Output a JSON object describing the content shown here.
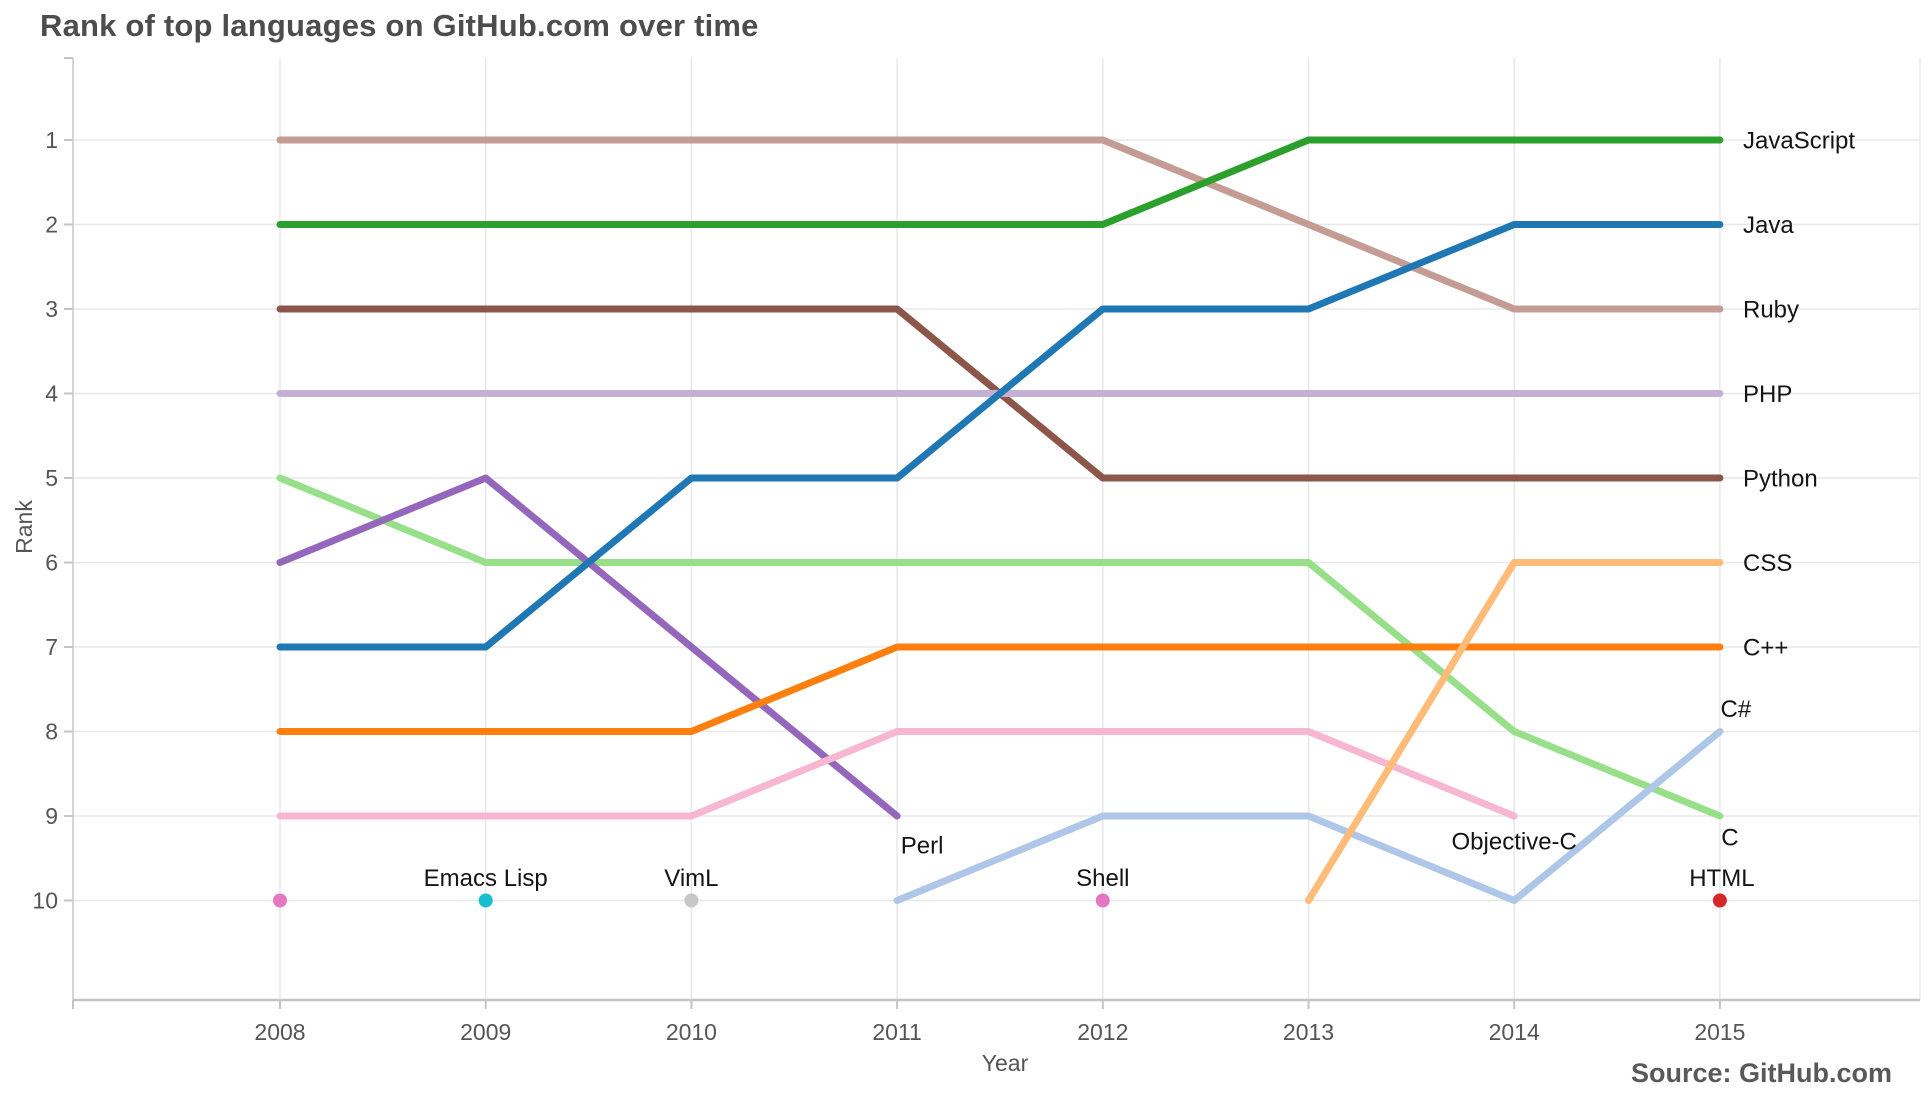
{
  "header": {
    "title": "Rank of top languages on GitHub.com over time"
  },
  "footer": {
    "source": "Source: GitHub.com"
  },
  "style": {
    "background": "#ffffff",
    "title_color": "#4d4d4d",
    "grid_color": "#e8e8e8",
    "left_spine_color": "#d6d6d6",
    "right_spine_color": "#ececec",
    "bottom_axis_color": "#c4c4c4",
    "tick_color": "#c4c4c4",
    "tick_label_color": "#555555",
    "axis_title_color": "#555555",
    "annotation_color": "#141414",
    "source_color": "#595959"
  },
  "chart_data": {
    "type": "line",
    "variant": "bump-rank-chart",
    "title": "Rank of top languages on GitHub.com over time",
    "xlabel": "Year",
    "ylabel": "Rank",
    "x": [
      2008,
      2009,
      2010,
      2011,
      2012,
      2013,
      2014,
      2015
    ],
    "y_ticks": [
      1,
      2,
      3,
      4,
      5,
      6,
      7,
      8,
      9,
      10
    ],
    "ylim": [
      1,
      10
    ],
    "y_inverted": true,
    "grid": true,
    "legend_position": "line-end-labels",
    "series": [
      {
        "name": "Ruby",
        "color": "#c49c94",
        "values": [
          1,
          1,
          1,
          1,
          1,
          2,
          3,
          3
        ],
        "label": {
          "mode": "right"
        }
      },
      {
        "name": "JavaScript",
        "color": "#2ca02c",
        "values": [
          2,
          2,
          2,
          2,
          2,
          1,
          1,
          1
        ],
        "label": {
          "mode": "right"
        }
      },
      {
        "name": "Python",
        "color": "#8c564b",
        "values": [
          3,
          3,
          3,
          3,
          5,
          5,
          5,
          5
        ],
        "label": {
          "mode": "right"
        }
      },
      {
        "name": "PHP",
        "color": "#c5b0d5",
        "values": [
          4,
          4,
          4,
          4,
          4,
          4,
          4,
          4
        ],
        "label": {
          "mode": "right"
        }
      },
      {
        "name": "C",
        "color": "#98df8a",
        "values": [
          5,
          6,
          6,
          6,
          6,
          6,
          8,
          9
        ],
        "label": {
          "mode": "below",
          "year": 2015,
          "rank": 9,
          "dx": 10,
          "dy": 22
        }
      },
      {
        "name": "Perl",
        "color": "#9467bd",
        "values": [
          6,
          5,
          7,
          9,
          null,
          null,
          null,
          null
        ],
        "label": {
          "mode": "below",
          "year": 2011,
          "rank": 9,
          "dx": 25,
          "dy": 30
        }
      },
      {
        "name": "Objective-C",
        "color": "#f7b6d2",
        "values": [
          9,
          9,
          9,
          8,
          8,
          8,
          9,
          null
        ],
        "label": {
          "mode": "below",
          "year": 2014,
          "rank": 9,
          "dx": 0,
          "dy": 26
        }
      },
      {
        "name": "Java",
        "color": "#1f77b4",
        "values": [
          7,
          7,
          5,
          5,
          3,
          3,
          2,
          2
        ],
        "label": {
          "mode": "right"
        }
      },
      {
        "name": "C++",
        "color": "#ff7f0e",
        "values": [
          8,
          8,
          8,
          7,
          7,
          7,
          7,
          7
        ],
        "label": {
          "mode": "right"
        }
      },
      {
        "name": "C#",
        "color": "#aec7e8",
        "values": [
          null,
          null,
          null,
          10,
          9,
          9,
          10,
          8
        ],
        "label": {
          "mode": "above",
          "year": 2015,
          "rank": 8,
          "dx": 16,
          "dy": -22
        }
      },
      {
        "name": "CSS",
        "color": "#ffbb78",
        "values": [
          null,
          null,
          null,
          null,
          null,
          10,
          6,
          6
        ],
        "label": {
          "mode": "right"
        }
      },
      {
        "name": "Shell",
        "color": "#e377c2",
        "values": [
          10,
          null,
          null,
          null,
          10,
          null,
          null,
          null
        ],
        "label": {
          "mode": "above",
          "year": 2012,
          "rank": 10,
          "dx": 0,
          "dy": -22
        }
      },
      {
        "name": "Emacs Lisp",
        "color": "#17becf",
        "values": [
          null,
          10,
          null,
          null,
          null,
          null,
          null,
          null
        ],
        "label": {
          "mode": "above",
          "year": 2009,
          "rank": 10,
          "dx": 0,
          "dy": -22
        }
      },
      {
        "name": "VimL",
        "color": "#c7c7c7",
        "values": [
          null,
          null,
          10,
          null,
          null,
          null,
          null,
          null
        ],
        "label": {
          "mode": "above",
          "year": 2010,
          "rank": 10,
          "dx": 0,
          "dy": -22
        }
      },
      {
        "name": "HTML",
        "color": "#d62728",
        "values": [
          null,
          null,
          null,
          null,
          null,
          null,
          null,
          10
        ],
        "label": {
          "mode": "above",
          "year": 2015,
          "rank": 10,
          "dx": 2,
          "dy": -22
        }
      }
    ]
  }
}
